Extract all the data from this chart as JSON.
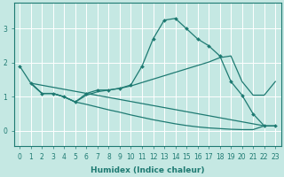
{
  "xlabel": "Humidex (Indice chaleur)",
  "background_color": "#c5e8e3",
  "line_color": "#1e7a72",
  "grid_color": "#ffffff",
  "xlim": [
    -0.5,
    23.5
  ],
  "ylim": [
    -0.45,
    3.75
  ],
  "xticks": [
    0,
    1,
    2,
    3,
    4,
    5,
    6,
    7,
    8,
    9,
    10,
    11,
    12,
    13,
    14,
    15,
    16,
    17,
    18,
    19,
    20,
    21,
    22,
    23
  ],
  "yticks": [
    0,
    1,
    2,
    3
  ],
  "curve1_x": [
    0,
    1,
    2,
    3,
    4,
    5,
    6,
    7,
    8,
    9,
    10,
    11,
    12,
    13,
    14,
    15,
    16,
    17,
    18,
    19,
    20,
    21,
    22,
    23
  ],
  "curve1_y": [
    1.9,
    1.4,
    1.1,
    1.1,
    1.0,
    0.85,
    1.1,
    1.2,
    1.2,
    1.25,
    1.35,
    1.9,
    2.7,
    3.25,
    3.3,
    3.0,
    2.7,
    2.5,
    2.2,
    1.45,
    1.05,
    0.5,
    0.15,
    0.15
  ],
  "curve2_x": [
    1,
    22
  ],
  "curve2_y": [
    1.4,
    0.15
  ],
  "curve3_x": [
    1,
    2,
    3,
    4,
    5,
    6,
    7,
    8,
    9,
    10,
    11,
    12,
    13,
    14,
    15,
    16,
    17,
    18,
    19,
    20,
    21,
    22,
    23
  ],
  "curve3_y": [
    1.4,
    1.1,
    1.1,
    1.0,
    0.85,
    1.05,
    1.15,
    1.2,
    1.25,
    1.32,
    1.42,
    1.52,
    1.62,
    1.72,
    1.82,
    1.92,
    2.02,
    2.15,
    2.2,
    1.45,
    1.05,
    1.05,
    1.45
  ],
  "curve4_x": [
    1,
    2,
    3,
    4,
    5,
    6,
    7,
    8,
    9,
    10,
    11,
    12,
    13,
    14,
    15,
    16,
    17,
    18,
    19,
    20,
    21,
    22,
    23
  ],
  "curve4_y": [
    1.4,
    1.1,
    1.1,
    1.0,
    0.85,
    0.78,
    0.7,
    0.62,
    0.55,
    0.47,
    0.4,
    0.33,
    0.27,
    0.21,
    0.16,
    0.12,
    0.09,
    0.07,
    0.05,
    0.04,
    0.04,
    0.15,
    0.15
  ],
  "figsize": [
    3.2,
    2.0
  ],
  "dpi": 100
}
